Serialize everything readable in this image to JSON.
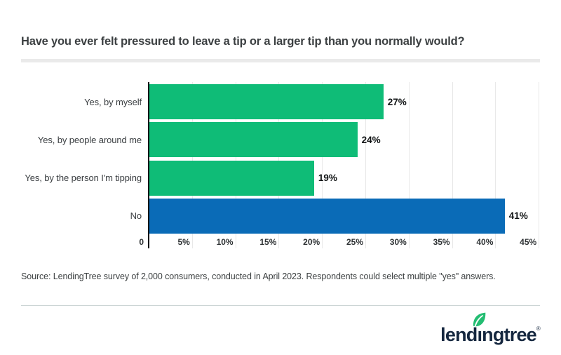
{
  "header": {
    "title": "Have you ever felt pressured to leave a tip or a larger tip than you normally would?"
  },
  "chart_data": {
    "type": "bar",
    "orientation": "horizontal",
    "title": "Have you ever felt pressured to leave a tip or a larger tip than you normally would?",
    "categories": [
      "Yes, by myself",
      "Yes, by people around me",
      "Yes, by the person I'm tipping",
      "No"
    ],
    "values": [
      27,
      24,
      19,
      41
    ],
    "value_labels": [
      "27%",
      "24%",
      "19%",
      "41%"
    ],
    "bar_colors": [
      "#0fbc77",
      "#0fbc77",
      "#0fbc77",
      "#0a6bb7"
    ],
    "x_ticks": [
      "0",
      "5%",
      "10%",
      "15%",
      "20%",
      "25%",
      "30%",
      "35%",
      "40%",
      "45%"
    ],
    "xlim": [
      0,
      45
    ],
    "grid": true,
    "legend": "none"
  },
  "colors": {
    "green": "#0fbc77",
    "blue": "#0a6bb7",
    "axis": "#141618",
    "gridline": "#e8e8e8",
    "logo_navy": "#15273f",
    "leaf_green": "#23bd72"
  },
  "footer": {
    "source": "Source: LendingTree survey of 2,000 consumers, conducted in April 2023. Respondents could select multiple \"yes\" answers.",
    "logo": {
      "brand": "lendingtree",
      "part_lend": "lend",
      "part_i": "ı",
      "part_ngtree": "ngtree",
      "registered": "®"
    }
  }
}
